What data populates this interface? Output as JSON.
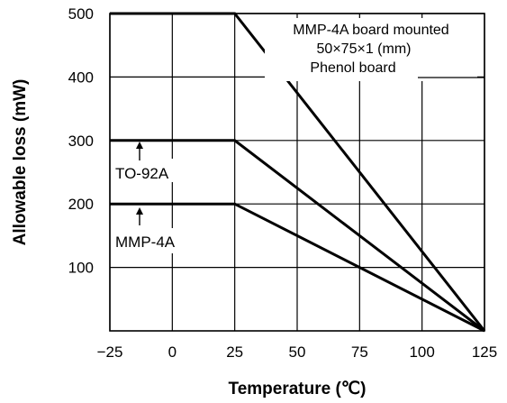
{
  "chart_data": {
    "type": "line",
    "xlabel": "Temperature (℃)",
    "ylabel": "Allowable loss (mW)",
    "xlim": [
      -25,
      125
    ],
    "ylim": [
      0,
      500
    ],
    "grid": true,
    "x_ticks": [
      "−25",
      "0",
      "25",
      "50",
      "75",
      "100",
      "125"
    ],
    "y_ticks": [
      "100",
      "200",
      "300",
      "400",
      "500"
    ],
    "x_tick_values": [
      -25,
      0,
      25,
      50,
      75,
      100,
      125
    ],
    "y_tick_values": [
      100,
      200,
      300,
      400,
      500
    ],
    "series": [
      {
        "name": "MMP-4A board mounted",
        "x": [
          -25,
          25,
          125
        ],
        "y": [
          500,
          500,
          0
        ]
      },
      {
        "name": "TO-92A",
        "x": [
          -25,
          25,
          125
        ],
        "y": [
          300,
          300,
          0
        ]
      },
      {
        "name": "MMP-4A",
        "x": [
          -25,
          25,
          125
        ],
        "y": [
          200,
          200,
          0
        ]
      }
    ],
    "annotations": {
      "board_line1": "MMP-4A board mounted",
      "board_line2": "50×75×1 (mm)",
      "board_line3": "Phenol board",
      "to92a": "TO-92A",
      "mmp4a": "MMP-4A"
    }
  }
}
